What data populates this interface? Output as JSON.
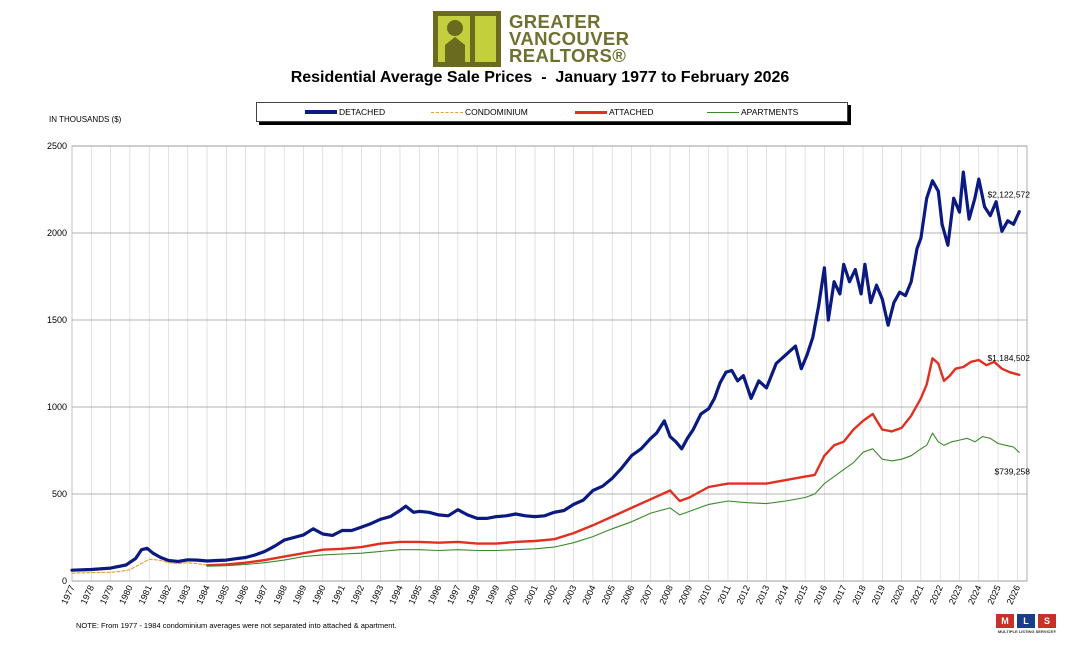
{
  "logo": {
    "line1": "GREATER",
    "line2": "VANCOUVER",
    "line3": "REALTORS®",
    "colors": {
      "mark": "#6b6b1f",
      "inner": "#c3cf3c",
      "text": "#6f7130"
    }
  },
  "note": "NOTE:  From 1977 - 1984 condominium averages were not separated into attached & apartment.",
  "mls_badge": {
    "letters": [
      "M",
      "L",
      "S"
    ],
    "subtitle": "MULTIPLE LISTING SERVICE®"
  },
  "chart_data": {
    "type": "line",
    "title": "Residential Average Sale Prices  -  January 1977 to February 2026",
    "ylabel": "IN THOUSANDS ($)",
    "xlabel": "",
    "ylim": [
      0,
      2500
    ],
    "yticks": [
      0,
      500,
      1000,
      1500,
      2000,
      2500
    ],
    "xlim": [
      1977.0,
      2026.5
    ],
    "xticks": [
      "1977",
      "1978",
      "1979",
      "1980",
      "1981",
      "1982",
      "1983",
      "1984",
      "1985",
      "1986",
      "1987",
      "1988",
      "1989",
      "1990",
      "1991",
      "1992",
      "1993",
      "1994",
      "1995",
      "1996",
      "1997",
      "1998",
      "1999",
      "2000",
      "2001",
      "2002",
      "2003",
      "2004",
      "2005",
      "2006",
      "2007",
      "2008",
      "2009",
      "2010",
      "2011",
      "2012",
      "2013",
      "2014",
      "2015",
      "2016",
      "2017",
      "2018",
      "2019",
      "2020",
      "2021",
      "2022",
      "2023",
      "2024",
      "2025",
      "2026"
    ],
    "grid": "both",
    "legend_position": "top",
    "series": [
      {
        "name": "DETACHED",
        "color": "#0a1a80",
        "style": "solid-thick",
        "x": [
          1977,
          1978,
          1979,
          1979.8,
          1980.3,
          1980.6,
          1980.9,
          1981.2,
          1981.6,
          1982,
          1982.5,
          1983,
          1983.5,
          1984,
          1984.5,
          1985,
          1985.5,
          1986,
          1986.5,
          1987,
          1987.5,
          1988,
          1988.5,
          1989,
          1989.5,
          1990,
          1990.5,
          1991,
          1991.5,
          1992,
          1992.5,
          1993,
          1993.5,
          1994,
          1994.3,
          1994.7,
          1995,
          1995.5,
          1996,
          1996.5,
          1997,
          1997.5,
          1998,
          1998.5,
          1999,
          1999.5,
          2000,
          2000.5,
          2001,
          2001.5,
          2002,
          2002.5,
          2003,
          2003.5,
          2004,
          2004.5,
          2005,
          2005.5,
          2006,
          2006.5,
          2007,
          2007.3,
          2007.7,
          2008,
          2008.3,
          2008.6,
          2008.9,
          2009.2,
          2009.6,
          2010,
          2010.3,
          2010.6,
          2010.9,
          2011.2,
          2011.5,
          2011.8,
          2012.2,
          2012.6,
          2013,
          2013.5,
          2014,
          2014.5,
          2014.8,
          2015.1,
          2015.4,
          2015.7,
          2016,
          2016.2,
          2016.5,
          2016.8,
          2017,
          2017.3,
          2017.6,
          2017.9,
          2018.1,
          2018.4,
          2018.7,
          2019,
          2019.3,
          2019.6,
          2019.9,
          2020.2,
          2020.5,
          2020.8,
          2021,
          2021.3,
          2021.6,
          2021.9,
          2022.1,
          2022.4,
          2022.7,
          2023,
          2023.2,
          2023.5,
          2023.8,
          2024,
          2024.3,
          2024.6,
          2024.9,
          2025.2,
          2025.5,
          2025.8,
          2026.1
        ],
        "y": [
          62,
          66,
          74,
          92,
          130,
          180,
          188,
          160,
          135,
          118,
          112,
          122,
          120,
          115,
          118,
          120,
          128,
          135,
          150,
          170,
          200,
          235,
          250,
          265,
          300,
          270,
          262,
          290,
          290,
          310,
          330,
          355,
          370,
          405,
          430,
          395,
          400,
          395,
          380,
          375,
          410,
          380,
          360,
          360,
          370,
          375,
          385,
          375,
          370,
          375,
          395,
          405,
          440,
          465,
          520,
          545,
          590,
          650,
          720,
          760,
          820,
          850,
          920,
          830,
          800,
          760,
          820,
          870,
          960,
          990,
          1050,
          1140,
          1200,
          1210,
          1150,
          1180,
          1050,
          1150,
          1110,
          1250,
          1300,
          1350,
          1220,
          1300,
          1400,
          1580,
          1800,
          1500,
          1720,
          1650,
          1820,
          1720,
          1790,
          1650,
          1820,
          1600,
          1700,
          1620,
          1470,
          1600,
          1660,
          1640,
          1720,
          1910,
          1970,
          2200,
          2300,
          2240,
          2050,
          1930,
          2200,
          2120,
          2350,
          2080,
          2200,
          2310,
          2150,
          2100,
          2180,
          2010,
          2070,
          2050,
          2122.572
        ]
      },
      {
        "name": "CONDOMINIUM",
        "color": "#e0a030",
        "style": "dashed",
        "x": [
          1977,
          1978,
          1979,
          1979.5,
          1980,
          1980.5,
          1981,
          1981.5,
          1982,
          1982.5,
          1983,
          1983.5,
          1984,
          1984.5
        ],
        "y": [
          45,
          48,
          50,
          55,
          65,
          95,
          125,
          120,
          105,
          100,
          105,
          100,
          92,
          90
        ]
      },
      {
        "name": "ATTACHED",
        "color": "#e03020",
        "style": "solid-medium",
        "x": [
          1984,
          1985,
          1986,
          1987,
          1988,
          1989,
          1990,
          1991,
          1992,
          1993,
          1994,
          1995,
          1996,
          1997,
          1998,
          1999,
          2000,
          2001,
          2002,
          2003,
          2004,
          2005,
          2006,
          2007,
          2008,
          2008.5,
          2009,
          2010,
          2011,
          2012,
          2013,
          2014,
          2015,
          2015.5,
          2016,
          2016.5,
          2017,
          2017.5,
          2018,
          2018.5,
          2019,
          2019.5,
          2020,
          2020.5,
          2021,
          2021.3,
          2021.6,
          2021.9,
          2022.2,
          2022.5,
          2022.8,
          2023.2,
          2023.6,
          2024,
          2024.4,
          2024.8,
          2025.2,
          2025.6,
          2026.1
        ],
        "y": [
          90,
          95,
          105,
          120,
          140,
          160,
          180,
          185,
          195,
          215,
          225,
          225,
          220,
          225,
          215,
          215,
          225,
          230,
          240,
          275,
          320,
          370,
          420,
          470,
          520,
          460,
          480,
          540,
          560,
          560,
          560,
          580,
          600,
          610,
          720,
          780,
          800,
          870,
          920,
          960,
          870,
          860,
          880,
          950,
          1050,
          1130,
          1280,
          1250,
          1150,
          1180,
          1220,
          1230,
          1260,
          1270,
          1240,
          1260,
          1220,
          1200,
          1184.502
        ]
      },
      {
        "name": "APARTMENTS",
        "color": "#3a8a2a",
        "style": "solid-thin",
        "x": [
          1984,
          1985,
          1986,
          1987,
          1988,
          1989,
          1990,
          1991,
          1992,
          1993,
          1994,
          1995,
          1996,
          1997,
          1998,
          1999,
          2000,
          2001,
          2002,
          2003,
          2004,
          2005,
          2006,
          2007,
          2008,
          2008.5,
          2009,
          2010,
          2011,
          2012,
          2013,
          2014,
          2015,
          2015.5,
          2016,
          2016.5,
          2017,
          2017.5,
          2018,
          2018.5,
          2019,
          2019.5,
          2020,
          2020.5,
          2021,
          2021.3,
          2021.6,
          2021.9,
          2022.2,
          2022.6,
          2023,
          2023.4,
          2023.8,
          2024.2,
          2024.6,
          2025,
          2025.4,
          2025.8,
          2026.1
        ],
        "y": [
          85,
          88,
          95,
          105,
          120,
          140,
          150,
          155,
          160,
          170,
          180,
          180,
          175,
          180,
          175,
          175,
          180,
          185,
          195,
          220,
          255,
          300,
          340,
          390,
          420,
          380,
          400,
          440,
          460,
          450,
          445,
          460,
          480,
          500,
          560,
          600,
          640,
          680,
          740,
          760,
          700,
          690,
          700,
          720,
          760,
          780,
          850,
          800,
          780,
          800,
          810,
          820,
          800,
          830,
          820,
          790,
          780,
          770,
          739.258
        ]
      }
    ],
    "annotations": [
      "$2,122,572",
      "$1,184,502",
      "$739,258"
    ]
  }
}
